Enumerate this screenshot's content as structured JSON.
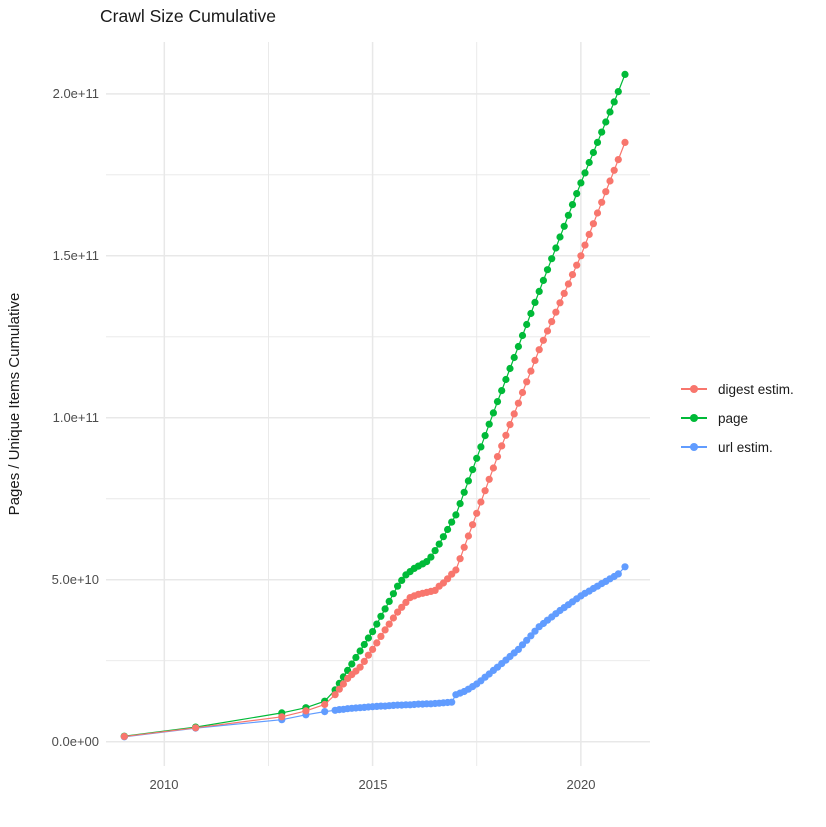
{
  "chart_data": {
    "type": "scatter",
    "title": "Crawl Size Cumulative",
    "xlabel": "",
    "ylabel": "Pages / Unique Items Cumulative",
    "grid": true,
    "legend_position": "right",
    "x_ticks": [
      "2010",
      "2015",
      "2020"
    ],
    "x_tick_years": [
      2010,
      2015,
      2020
    ],
    "x_minor_years": [
      2012.5,
      2017.5
    ],
    "y_ticks": [
      "0.0e+00",
      "5.0e+10",
      "1.0e+11",
      "1.5e+11",
      "2.0e+11"
    ],
    "y_tick_values_1e10": [
      0,
      5,
      10,
      15,
      20
    ],
    "y_minor_values_1e10": [
      2.5,
      7.5,
      12.5,
      17.5
    ],
    "xlim": [
      2008.6,
      2021.66
    ],
    "ylim_1e10": [
      -0.75,
      21.6
    ],
    "value_unit": "items (values given in units of 1e10)",
    "years": [
      2009.04,
      2010.75,
      2012.82,
      2013.4,
      2013.85,
      2014.1,
      2014.2,
      2014.3,
      2014.4,
      2014.5,
      2014.6,
      2014.7,
      2014.8,
      2014.9,
      2015.0,
      2015.1,
      2015.2,
      2015.3,
      2015.4,
      2015.5,
      2015.6,
      2015.7,
      2015.8,
      2015.9,
      2016.0,
      2016.1,
      2016.2,
      2016.3,
      2016.4,
      2016.5,
      2016.6,
      2016.7,
      2016.8,
      2016.9,
      2017.0,
      2017.1,
      2017.2,
      2017.3,
      2017.4,
      2017.5,
      2017.6,
      2017.7,
      2017.8,
      2017.9,
      2018.0,
      2018.1,
      2018.2,
      2018.3,
      2018.4,
      2018.5,
      2018.6,
      2018.7,
      2018.8,
      2018.9,
      2019.0,
      2019.1,
      2019.2,
      2019.3,
      2019.4,
      2019.5,
      2019.6,
      2019.7,
      2019.8,
      2019.9,
      2020.0,
      2020.1,
      2020.2,
      2020.3,
      2020.4,
      2020.5,
      2020.6,
      2020.7,
      2020.8,
      2020.9,
      2021.06
    ],
    "series": [
      {
        "name": "digest estim.",
        "color": "#F8766D",
        "values_1e10": [
          0.16,
          0.43,
          0.77,
          0.95,
          1.15,
          1.45,
          1.62,
          1.78,
          1.95,
          2.07,
          2.18,
          2.3,
          2.48,
          2.67,
          2.85,
          3.05,
          3.25,
          3.45,
          3.63,
          3.82,
          4.0,
          4.15,
          4.3,
          4.45,
          4.5,
          4.55,
          4.58,
          4.61,
          4.64,
          4.67,
          4.8,
          4.9,
          5.03,
          5.17,
          5.3,
          5.65,
          6.0,
          6.35,
          6.7,
          7.05,
          7.4,
          7.75,
          8.1,
          8.45,
          8.8,
          9.13,
          9.46,
          9.79,
          10.12,
          10.45,
          10.78,
          11.11,
          11.44,
          11.77,
          12.1,
          12.39,
          12.68,
          12.97,
          13.26,
          13.55,
          13.84,
          14.13,
          14.42,
          14.71,
          15.0,
          15.33,
          15.66,
          15.99,
          16.32,
          16.65,
          16.98,
          17.31,
          17.64,
          17.97,
          18.5
        ]
      },
      {
        "name": "page",
        "color": "#00BA38",
        "values_1e10": [
          0.17,
          0.45,
          0.89,
          1.05,
          1.25,
          1.6,
          1.8,
          2.0,
          2.2,
          2.4,
          2.6,
          2.8,
          3.0,
          3.2,
          3.4,
          3.63,
          3.87,
          4.1,
          4.33,
          4.57,
          4.8,
          4.98,
          5.15,
          5.25,
          5.35,
          5.42,
          5.49,
          5.56,
          5.7,
          5.9,
          6.1,
          6.33,
          6.55,
          6.78,
          7.0,
          7.35,
          7.7,
          8.05,
          8.4,
          8.75,
          9.1,
          9.45,
          9.8,
          10.15,
          10.5,
          10.84,
          11.18,
          11.52,
          11.86,
          12.2,
          12.54,
          12.88,
          13.22,
          13.56,
          13.9,
          14.24,
          14.57,
          14.91,
          15.24,
          15.58,
          15.91,
          16.25,
          16.58,
          16.92,
          17.25,
          17.56,
          17.88,
          18.19,
          18.5,
          18.82,
          19.13,
          19.44,
          19.75,
          20.07,
          20.6
        ]
      },
      {
        "name": "url estim.",
        "color": "#619CFF",
        "values_1e10": [
          0.15,
          0.42,
          0.68,
          0.83,
          0.93,
          0.97,
          0.99,
          1.0,
          1.02,
          1.03,
          1.04,
          1.05,
          1.06,
          1.07,
          1.08,
          1.09,
          1.1,
          1.1,
          1.11,
          1.12,
          1.13,
          1.13,
          1.14,
          1.14,
          1.15,
          1.16,
          1.16,
          1.17,
          1.17,
          1.18,
          1.19,
          1.2,
          1.21,
          1.22,
          1.45,
          1.5,
          1.55,
          1.62,
          1.7,
          1.78,
          1.88,
          1.99,
          2.09,
          2.2,
          2.3,
          2.41,
          2.52,
          2.63,
          2.74,
          2.85,
          2.99,
          3.13,
          3.27,
          3.41,
          3.55,
          3.65,
          3.75,
          3.85,
          3.95,
          4.05,
          4.14,
          4.23,
          4.32,
          4.41,
          4.5,
          4.58,
          4.65,
          4.73,
          4.8,
          4.88,
          4.95,
          5.03,
          5.1,
          5.18,
          5.4
        ]
      }
    ],
    "colors": {
      "grid": "#E8E8E8",
      "tick_label": "#4D4D4D",
      "digest_estim": "#F8766D",
      "page": "#00BA38",
      "url_estim": "#619CFF"
    }
  }
}
